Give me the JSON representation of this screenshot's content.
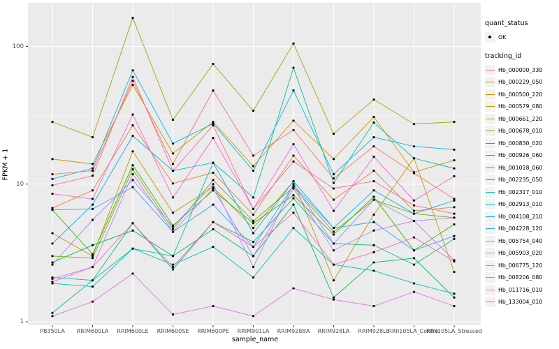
{
  "y_axis": {
    "title": "FPKM + 1",
    "tick_labels": [
      "100",
      "10",
      "1"
    ],
    "tick_values": [
      100,
      10,
      1
    ]
  },
  "x_axis": {
    "title": "sample_name"
  },
  "legend": {
    "quant_title": "quant_status",
    "quant_item": "OK",
    "tracking_title": "tracking_id"
  },
  "style": {
    "panel_bg": "#ebebeb",
    "grid_color": "#ffffff",
    "tick_color": "#333333",
    "tick_label_color": "#4d4d4d",
    "point_color": "#000000",
    "key_bg": "#f2f2f2"
  },
  "chart_data": {
    "type": "line",
    "title": "",
    "xlabel": "sample_name",
    "ylabel": "FPKM + 1",
    "y_scale": "log10",
    "ylim": [
      1,
      200
    ],
    "y_major_gridlines": [
      1,
      10,
      100
    ],
    "y_minor_gridlines": [
      3.162,
      31.62
    ],
    "grid": "on",
    "legend_position": "right",
    "point_status_label": "OK",
    "categories": [
      "PB350LA",
      "RRIM600LA",
      "RRIM600LE",
      "RRIM600SE",
      "RRIM600PE",
      "RRIM901LA",
      "RRIM928BA",
      "RRIM928LA",
      "RRIM928LE",
      "RRII105LA_Control",
      "RRII105LA_Stressed"
    ],
    "series": [
      {
        "name": "Hb_000000_330",
        "color": "#F8766D",
        "values": [
          11.8,
          12.5,
          56.2,
          14.0,
          47.8,
          16.1,
          24.7,
          11.0,
          18.8,
          12.0,
          7.8
        ]
      },
      {
        "name": "Hb_000229_050",
        "color": "#EA8331",
        "values": [
          6.7,
          9.0,
          26.7,
          10.1,
          12.1,
          6.0,
          16.1,
          7.7,
          12.5,
          6.4,
          6.8
        ]
      },
      {
        "name": "Hb_000500_220",
        "color": "#D89000",
        "values": [
          15.2,
          14.0,
          52.5,
          16.7,
          28.3,
          13.5,
          28.9,
          15.2,
          30.7,
          12.2,
          14.9
        ]
      },
      {
        "name": "Hb_000579_080",
        "color": "#C09B00",
        "values": [
          4.4,
          3.0,
          17.3,
          6.2,
          9.5,
          4.8,
          10.5,
          2.0,
          6.0,
          15.4,
          2.3
        ]
      },
      {
        "name": "Hb_000661_220",
        "color": "#A3A500",
        "values": [
          28.3,
          21.9,
          161.0,
          29.3,
          74.6,
          34.1,
          105.0,
          23.2,
          41.1,
          27.3,
          28.3
        ]
      },
      {
        "name": "Hb_000678_010",
        "color": "#7CAE00",
        "values": [
          3.0,
          2.9,
          12.8,
          4.7,
          10.7,
          5.4,
          9.5,
          4.5,
          7.7,
          6.1,
          5.7
        ]
      },
      {
        "name": "Hb_000830_020",
        "color": "#39B600",
        "values": [
          6.5,
          3.1,
          13.7,
          5.0,
          9.0,
          5.2,
          8.3,
          4.3,
          8.1,
          3.3,
          5.1
        ]
      },
      {
        "name": "Hb_000926_060",
        "color": "#00BB4E",
        "values": [
          2.7,
          3.6,
          4.6,
          3.0,
          4.7,
          3.0,
          7.1,
          1.5,
          2.7,
          2.9,
          1.5
        ]
      },
      {
        "name": "Hb_001018_060",
        "color": "#00BF7D",
        "values": [
          1.16,
          2.0,
          5.2,
          2.4,
          5.3,
          3.8,
          7.9,
          3.7,
          3.6,
          2.6,
          4.0
        ]
      },
      {
        "name": "Hb_002235_050",
        "color": "#00C1A3",
        "values": [
          2.1,
          2.0,
          3.4,
          3.0,
          14.3,
          8.0,
          70.0,
          10.2,
          28.0,
          15.4,
          13.0
        ]
      },
      {
        "name": "Hb_002317_010",
        "color": "#00BFC4",
        "values": [
          1.9,
          1.8,
          3.4,
          2.6,
          3.5,
          2.1,
          4.8,
          2.6,
          2.35,
          1.9,
          1.6
        ]
      },
      {
        "name": "Hb_002913_010",
        "color": "#00BAE0",
        "values": [
          10.9,
          13.0,
          67.0,
          19.7,
          27.5,
          12.5,
          47.9,
          11.8,
          21.9,
          18.8,
          17.8
        ]
      },
      {
        "name": "Hb_004108_210",
        "color": "#00B0F6",
        "values": [
          3.7,
          7.1,
          22.4,
          12.5,
          14.3,
          4.4,
          10.5,
          4.8,
          9.0,
          6.1,
          7.6
        ]
      },
      {
        "name": "Hb_004228_120",
        "color": "#35A2FF",
        "values": [
          6.5,
          6.6,
          9.5,
          4.5,
          7.1,
          3.5,
          9.8,
          4.8,
          5.3,
          3.3,
          4.2
        ]
      },
      {
        "name": "Hb_005754_040",
        "color": "#9590FF",
        "values": [
          2.6,
          5.5,
          10.7,
          4.9,
          10.0,
          2.5,
          10.0,
          3.7,
          7.7,
          5.4,
          5.7
        ]
      },
      {
        "name": "Hb_005903_020",
        "color": "#C77CFF",
        "values": [
          2.05,
          2.5,
          11.8,
          4.5,
          9.3,
          3.0,
          9.3,
          3.3,
          4.6,
          5.4,
          2.8
        ]
      },
      {
        "name": "Hb_006775_120",
        "color": "#E76BF3",
        "values": [
          1.1,
          1.4,
          2.24,
          1.13,
          1.3,
          1.1,
          1.75,
          1.45,
          1.3,
          1.65,
          1.3
        ]
      },
      {
        "name": "Hb_008206_080",
        "color": "#FA62DB",
        "values": [
          8.5,
          7.8,
          32.0,
          8.0,
          21.6,
          6.6,
          19.5,
          6.4,
          15.8,
          7.6,
          11.4
        ]
      },
      {
        "name": "Hb_011716_010",
        "color": "#FF62BC",
        "values": [
          1.95,
          2.5,
          5.2,
          2.5,
          5.3,
          3.5,
          6.2,
          2.6,
          3.2,
          4.1,
          2.75
        ]
      },
      {
        "name": "Hb_133004_010",
        "color": "#FF6A98",
        "values": [
          9.8,
          11.5,
          60.0,
          12.5,
          26.7,
          6.6,
          14.6,
          9.3,
          10.5,
          7.0,
          6.1
        ]
      }
    ]
  }
}
